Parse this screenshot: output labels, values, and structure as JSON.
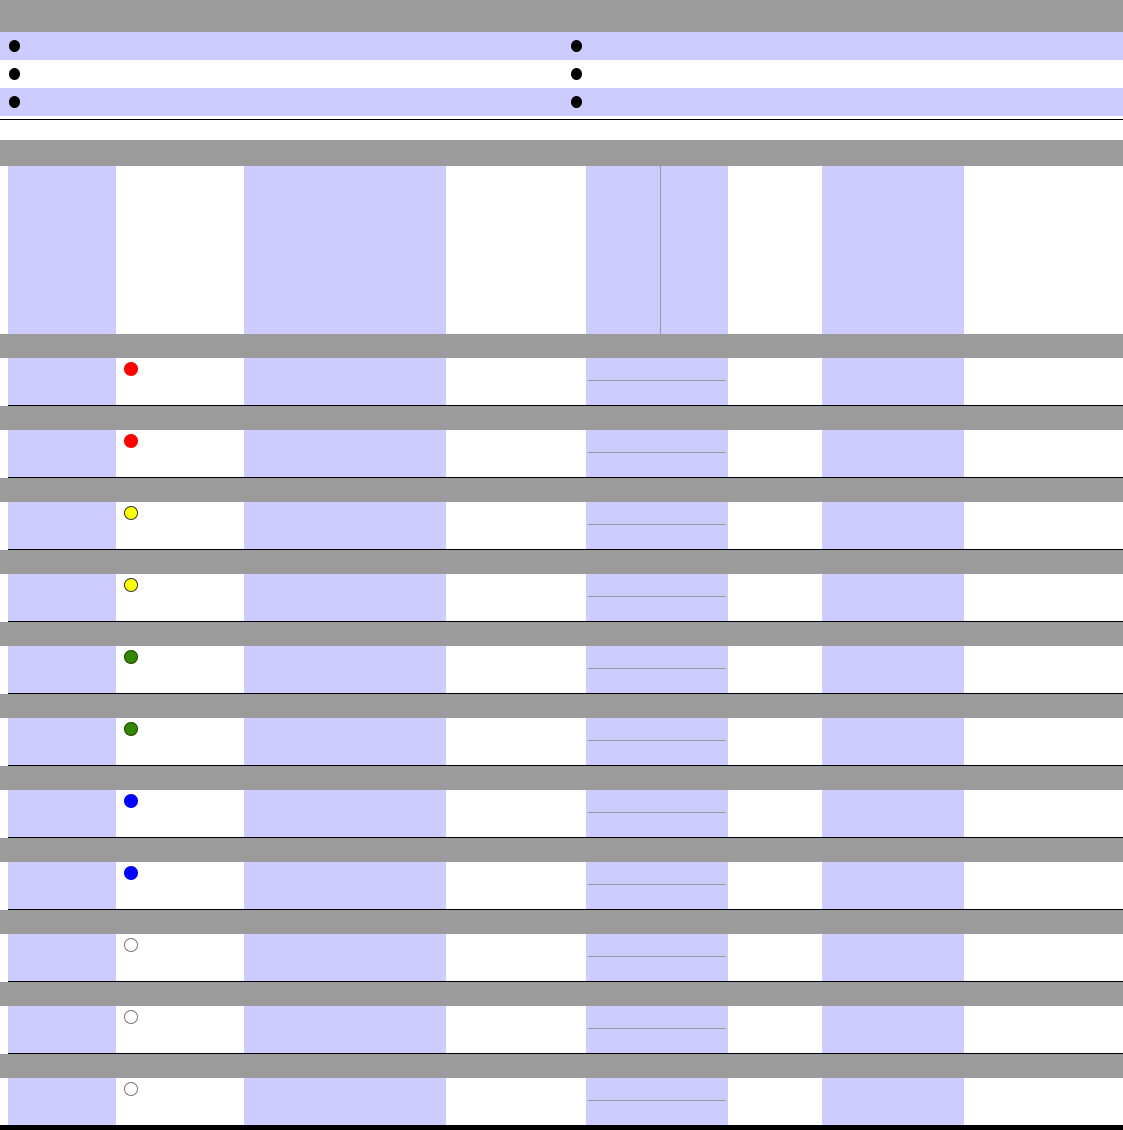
{
  "legend_rows": [
    {
      "shaded": true
    },
    {
      "shaded": false
    },
    {
      "shaded": true
    }
  ],
  "status_rows": [
    {
      "status_color": "#ff0000",
      "outline": "#ff0000"
    },
    {
      "status_color": "#ff0000",
      "outline": "#ff0000"
    },
    {
      "status_color": "#ffff00",
      "outline": "#333333"
    },
    {
      "status_color": "#ffff00",
      "outline": "#333333"
    },
    {
      "status_color": "#338800",
      "outline": "#1a4400"
    },
    {
      "status_color": "#338800",
      "outline": "#1a4400"
    },
    {
      "status_color": "#0000ff",
      "outline": "#0000ff"
    },
    {
      "status_color": "#0000ff",
      "outline": "#0000ff"
    },
    {
      "status_color": "#ffffff",
      "outline": "#777777"
    },
    {
      "status_color": "#ffffff",
      "outline": "#777777"
    },
    {
      "status_color": "#ffffff",
      "outline": "#777777"
    }
  ],
  "colors": {
    "header": "#9b9b9b",
    "shade": "#ccccff",
    "bullet": "#000000"
  }
}
